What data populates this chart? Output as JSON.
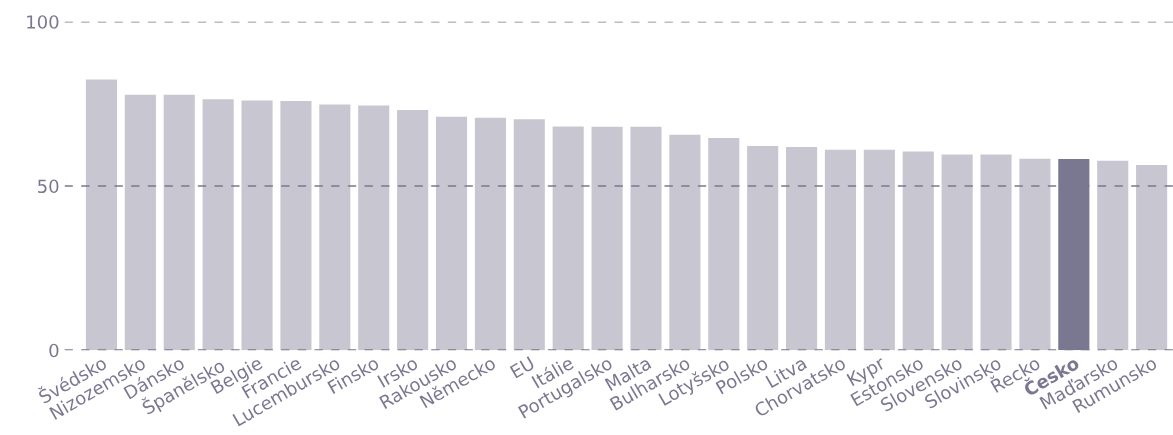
{
  "chart_data": {
    "type": "bar",
    "categories": [
      "Švédsko",
      "Nizozemsko",
      "Dánsko",
      "Španělsko",
      "Belgie",
      "Francie",
      "Lucembursko",
      "Finsko",
      "Irsko",
      "Rakousko",
      "Německo",
      "EU",
      "Itálie",
      "Portugalsko",
      "Malta",
      "Bulharsko",
      "Lotyšsko",
      "Polsko",
      "Litva",
      "Chorvatsko",
      "Kypr",
      "Estonsko",
      "Slovensko",
      "Slovinsko",
      "Řecko",
      "Česko",
      "Maďarsko",
      "Rumunsko"
    ],
    "values": [
      82.4,
      77.8,
      77.8,
      76.4,
      76.0,
      75.9,
      74.8,
      74.5,
      73.1,
      71.1,
      70.8,
      70.3,
      68.1,
      68.0,
      68.0,
      65.6,
      64.6,
      62.2,
      61.9,
      61.0,
      61.0,
      60.5,
      59.6,
      59.6,
      58.3,
      58.2,
      57.7,
      56.4
    ],
    "colors": [
      "#c8c7d1",
      "#c8c7d1",
      "#c8c7d1",
      "#c8c7d1",
      "#c8c7d1",
      "#c8c7d1",
      "#c8c7d1",
      "#c8c7d1",
      "#c8c7d1",
      "#c8c7d1",
      "#c8c7d1",
      "#c8c7d1",
      "#c8c7d1",
      "#c8c7d1",
      "#c8c7d1",
      "#c8c7d1",
      "#c8c7d1",
      "#c8c7d1",
      "#c8c7d1",
      "#c8c7d1",
      "#c8c7d1",
      "#c8c7d1",
      "#c8c7d1",
      "#c8c7d1",
      "#c8c7d1",
      "#7a7891",
      "#c8c7d1",
      "#c8c7d1"
    ],
    "ylim": [
      0,
      100
    ],
    "yticks": [
      0,
      50,
      100
    ],
    "grid": "y"
  }
}
